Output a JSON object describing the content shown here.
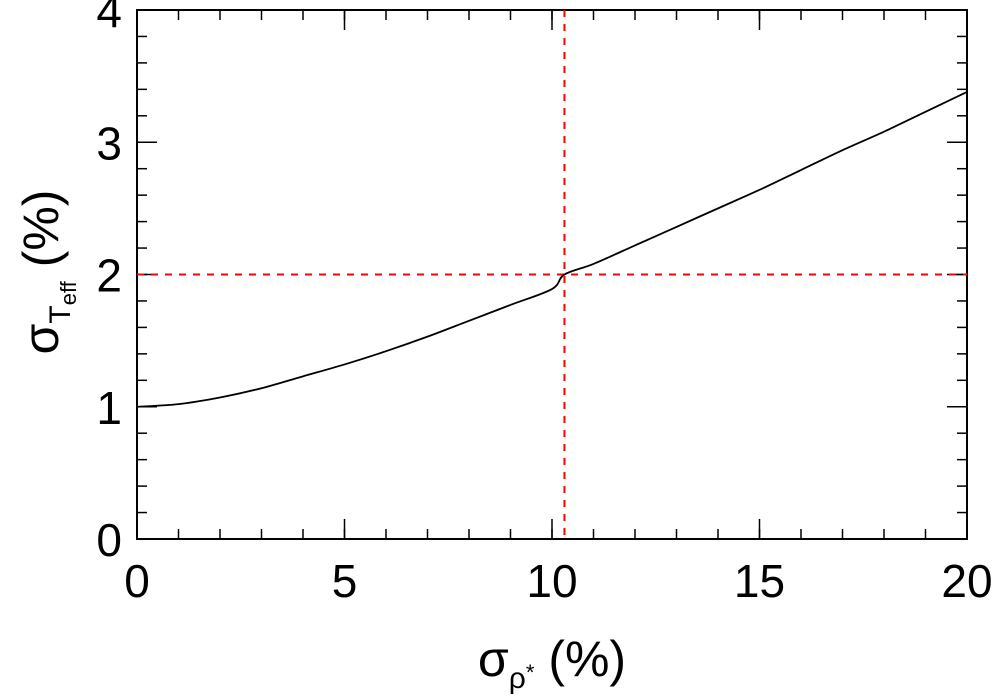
{
  "chart_data": {
    "type": "line",
    "xlabel": {
      "symbol": "σ",
      "sub": "ρ",
      "sub_sup": "*",
      "unit": " (%)"
    },
    "ylabel": {
      "symbol": "σ",
      "sub": "T",
      "sub_sub": "eff",
      "unit": " (%)"
    },
    "xlim": [
      0,
      20
    ],
    "ylim": [
      0,
      4
    ],
    "x_ticks": [
      0,
      5,
      10,
      15,
      20
    ],
    "x_tick_labels": [
      "0",
      "5",
      "10",
      "15",
      "20"
    ],
    "y_ticks": [
      0,
      1,
      2,
      3,
      4
    ],
    "y_tick_labels": [
      "0",
      "1",
      "2",
      "3",
      "4"
    ],
    "x_minor_step": 1,
    "y_minor_step": 0.2,
    "grid": false,
    "series": [
      {
        "color": "#000000",
        "x": [
          0,
          1,
          2,
          3,
          4,
          5,
          6,
          7,
          8,
          9,
          10,
          10.3,
          11,
          12,
          13,
          14,
          15,
          16,
          17,
          18,
          19,
          20
        ],
        "y": [
          1.0,
          1.02,
          1.07,
          1.14,
          1.23,
          1.32,
          1.42,
          1.53,
          1.65,
          1.77,
          1.89,
          2.0,
          2.08,
          2.22,
          2.36,
          2.5,
          2.64,
          2.79,
          2.94,
          3.08,
          3.23,
          3.38
        ]
      }
    ],
    "reference_lines": [
      {
        "orientation": "vertical",
        "x": 10.3,
        "color": "#ff0000",
        "style": "dashed"
      },
      {
        "orientation": "horizontal",
        "y": 2.0,
        "color": "#ff0000",
        "style": "dashed"
      }
    ]
  }
}
